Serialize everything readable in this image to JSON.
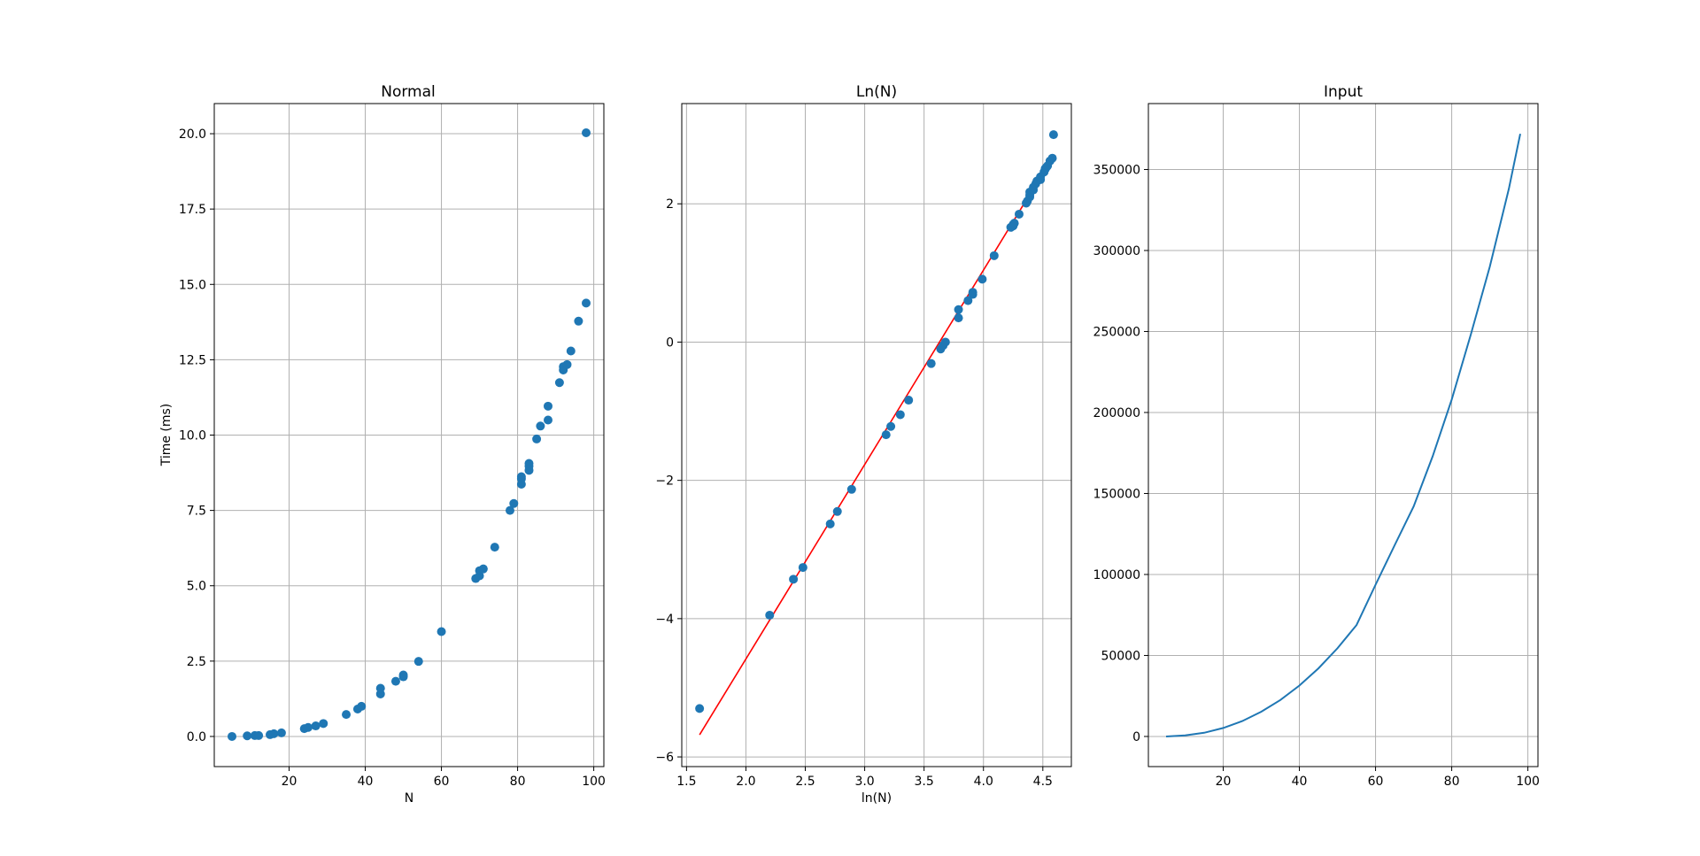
{
  "chart_data": [
    {
      "type": "scatter",
      "title": "Normal",
      "xlabel": "N",
      "ylabel": "Time (ms)",
      "xlim": [
        0.35,
        102.65
      ],
      "ylim": [
        -1.0,
        21.0
      ],
      "xticks": [
        20,
        40,
        60,
        80,
        100
      ],
      "xtick_labels": [
        "20",
        "40",
        "60",
        "80",
        "100"
      ],
      "yticks": [
        0,
        2.5,
        5,
        7.5,
        10,
        12.5,
        15,
        17.5,
        20
      ],
      "ytick_labels": [
        "0.0",
        "2.5",
        "5.0",
        "7.5",
        "10.0",
        "12.5",
        "15.0",
        "17.5",
        "20.0"
      ],
      "grid": true,
      "colors": {
        "points": "#1f77b4"
      },
      "series": [
        {
          "x": [
            5,
            9,
            11,
            12,
            15,
            16,
            18,
            24,
            25,
            27,
            29,
            35,
            38,
            39,
            44,
            44,
            48,
            50,
            50,
            54,
            60,
            69,
            70,
            70,
            71,
            74,
            78,
            79,
            81,
            81,
            81,
            83,
            83,
            83,
            85,
            86,
            88,
            88,
            91,
            92,
            92,
            93,
            94,
            96,
            98,
            98
          ],
          "y": [
            0.0,
            0.02,
            0.03,
            0.03,
            0.06,
            0.09,
            0.12,
            0.26,
            0.3,
            0.35,
            0.43,
            0.73,
            0.91,
            1.0,
            1.41,
            1.6,
            1.83,
            1.98,
            2.04,
            2.49,
            3.48,
            5.24,
            5.33,
            5.5,
            5.56,
            6.28,
            7.5,
            7.73,
            8.37,
            8.55,
            8.62,
            8.83,
            8.97,
            9.06,
            9.87,
            10.3,
            10.5,
            10.96,
            11.74,
            12.16,
            12.27,
            12.34,
            12.79,
            13.78,
            14.38,
            20.03
          ]
        }
      ]
    },
    {
      "type": "scatter",
      "title": "Ln(N)",
      "xlabel": "ln(N)",
      "ylabel": "",
      "xlim": [
        1.46,
        4.74
      ],
      "ylim": [
        -6.14,
        3.45
      ],
      "xticks": [
        1.5,
        2.0,
        2.5,
        3.0,
        3.5,
        4.0,
        4.5
      ],
      "xtick_labels": [
        "1.5",
        "2.0",
        "2.5",
        "3.0",
        "3.5",
        "4.0",
        "4.5"
      ],
      "yticks": [
        -6,
        -4,
        -2,
        0,
        2
      ],
      "ytick_labels": [
        "−6",
        "−4",
        "−2",
        "0",
        "2"
      ],
      "grid": true,
      "colors": {
        "points": "#1f77b4",
        "fit": "#ff0000"
      },
      "fit_line": {
        "x": [
          1.61,
          4.59
        ],
        "y": [
          -5.68,
          2.7
        ]
      },
      "series": [
        {
          "x": [
            1.61,
            2.2,
            2.4,
            2.48,
            2.71,
            2.77,
            2.89,
            3.18,
            3.22,
            3.3,
            3.37,
            3.56,
            3.64,
            3.66,
            3.68,
            3.79,
            3.79,
            3.87,
            3.91,
            3.91,
            3.99,
            4.09,
            4.23,
            4.25,
            4.25,
            4.26,
            4.3,
            4.36,
            4.37,
            4.39,
            4.39,
            4.39,
            4.42,
            4.42,
            4.44,
            4.45,
            4.48,
            4.48,
            4.51,
            4.52,
            4.52,
            4.53,
            4.54,
            4.56,
            4.58,
            4.59
          ],
          "y": [
            -5.3,
            -3.95,
            -3.43,
            -3.26,
            -2.63,
            -2.45,
            -2.13,
            -1.34,
            -1.22,
            -1.05,
            -0.84,
            -0.31,
            -0.1,
            -0.05,
            0.0,
            0.35,
            0.47,
            0.6,
            0.69,
            0.72,
            0.91,
            1.25,
            1.66,
            1.68,
            1.7,
            1.72,
            1.85,
            2.01,
            2.04,
            2.1,
            2.13,
            2.17,
            2.2,
            2.24,
            2.29,
            2.33,
            2.35,
            2.39,
            2.46,
            2.5,
            2.51,
            2.53,
            2.55,
            2.62,
            2.66,
            3.0
          ]
        }
      ]
    },
    {
      "type": "line",
      "title": "Input",
      "xlabel": "",
      "ylabel": "",
      "xlim": [
        0.35,
        102.65
      ],
      "ylim": [
        -18600,
        390700
      ],
      "xticks": [
        20,
        40,
        60,
        80,
        100
      ],
      "xtick_labels": [
        "20",
        "40",
        "60",
        "80",
        "100"
      ],
      "yticks": [
        0,
        50000,
        100000,
        150000,
        200000,
        250000,
        300000,
        350000
      ],
      "ytick_labels": [
        "0",
        "50000",
        "100000",
        "150000",
        "200000",
        "250000",
        "300000",
        "350000"
      ],
      "grid": true,
      "colors": {
        "line": "#1f77b4"
      },
      "series": [
        {
          "x": [
            5,
            10,
            15,
            20,
            25,
            30,
            35,
            40,
            45,
            50,
            55,
            60,
            65,
            70,
            75,
            80,
            85,
            90,
            95,
            98
          ],
          "y": [
            0,
            700,
            2300,
            5200,
            9500,
            15300,
            22500,
            31400,
            42000,
            54400,
            68800,
            93700,
            118000,
            142000,
            173000,
            208000,
            248000,
            290000,
            338000,
            372000
          ]
        }
      ]
    }
  ]
}
